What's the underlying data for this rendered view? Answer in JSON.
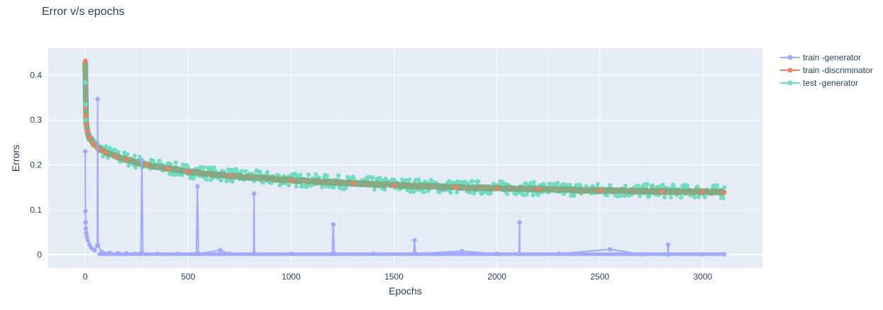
{
  "chart_data": {
    "type": "line",
    "title": "Error v/s epochs",
    "xlabel": "Epochs",
    "ylabel": "Errors",
    "xlim": [
      -180,
      3290
    ],
    "ylim": [
      -0.03,
      0.46
    ],
    "x_ticks": [
      0,
      500,
      1000,
      1500,
      2000,
      2500,
      3000
    ],
    "y_ticks": [
      0,
      0.1,
      0.2,
      0.3,
      0.4
    ],
    "y_tick_labels": [
      "0",
      "0.1",
      "0.2",
      "0.3",
      "0.4"
    ],
    "x_max": 3105,
    "grid": true,
    "legend_position": "top-right",
    "series": [
      {
        "name": "train -generator",
        "color": "#a3a9fa",
        "x": [
          0,
          1,
          2,
          3,
          5,
          8,
          12,
          20,
          30,
          45,
          58,
          60,
          62,
          80,
          120,
          160,
          200,
          240,
          270,
          275,
          280,
          350,
          450,
          540,
          545,
          550,
          655,
          700,
          818,
          820,
          822,
          1000,
          1200,
          1205,
          1210,
          1400,
          1595,
          1600,
          1605,
          1830,
          2000,
          2108,
          2110,
          2112,
          2300,
          2550,
          2700,
          2830,
          2832,
          2834,
          3000,
          3105
        ],
        "y": [
          0.23,
          0.097,
          0.072,
          0.058,
          0.048,
          0.04,
          0.032,
          0.022,
          0.015,
          0.01,
          0.02,
          0.347,
          0.02,
          0.006,
          0.004,
          0.003,
          0.003,
          0.002,
          0.003,
          0.21,
          0.003,
          0.002,
          0.002,
          0.002,
          0.152,
          0.002,
          0.01,
          0.002,
          0.002,
          0.136,
          0.002,
          0.002,
          0.002,
          0.067,
          0.002,
          0.002,
          0.002,
          0.032,
          0.002,
          0.008,
          0.002,
          0.002,
          0.072,
          0.002,
          0.002,
          0.012,
          0.001,
          0.001,
          0.022,
          0.001,
          0.001,
          0.001
        ]
      },
      {
        "name": "train -discriminator",
        "color": "#ef8063",
        "x": [
          0,
          1,
          2,
          5,
          10,
          20,
          35,
          50,
          75,
          100,
          150,
          200,
          300,
          400,
          500,
          700,
          1000,
          1300,
          1500,
          1800,
          2000,
          2200,
          2500,
          2800,
          3000,
          3105
        ],
        "y": [
          0.432,
          0.33,
          0.31,
          0.29,
          0.275,
          0.262,
          0.25,
          0.242,
          0.234,
          0.228,
          0.219,
          0.212,
          0.2,
          0.192,
          0.185,
          0.176,
          0.166,
          0.159,
          0.155,
          0.15,
          0.148,
          0.146,
          0.143,
          0.141,
          0.14,
          0.139
        ]
      },
      {
        "name": "test -generator",
        "color": "#72dcc0",
        "x": [
          0,
          1,
          2,
          5,
          10,
          20,
          35,
          50,
          75,
          100,
          150,
          200,
          300,
          400,
          500,
          700,
          1000,
          1300,
          1500,
          1800,
          2000,
          2200,
          2500,
          2800,
          3000,
          3105
        ],
        "y": [
          0.384,
          0.335,
          0.3,
          0.28,
          0.27,
          0.26,
          0.252,
          0.244,
          0.235,
          0.229,
          0.22,
          0.213,
          0.201,
          0.193,
          0.186,
          0.177,
          0.167,
          0.16,
          0.156,
          0.151,
          0.149,
          0.147,
          0.144,
          0.142,
          0.141,
          0.14
        ]
      }
    ]
  }
}
